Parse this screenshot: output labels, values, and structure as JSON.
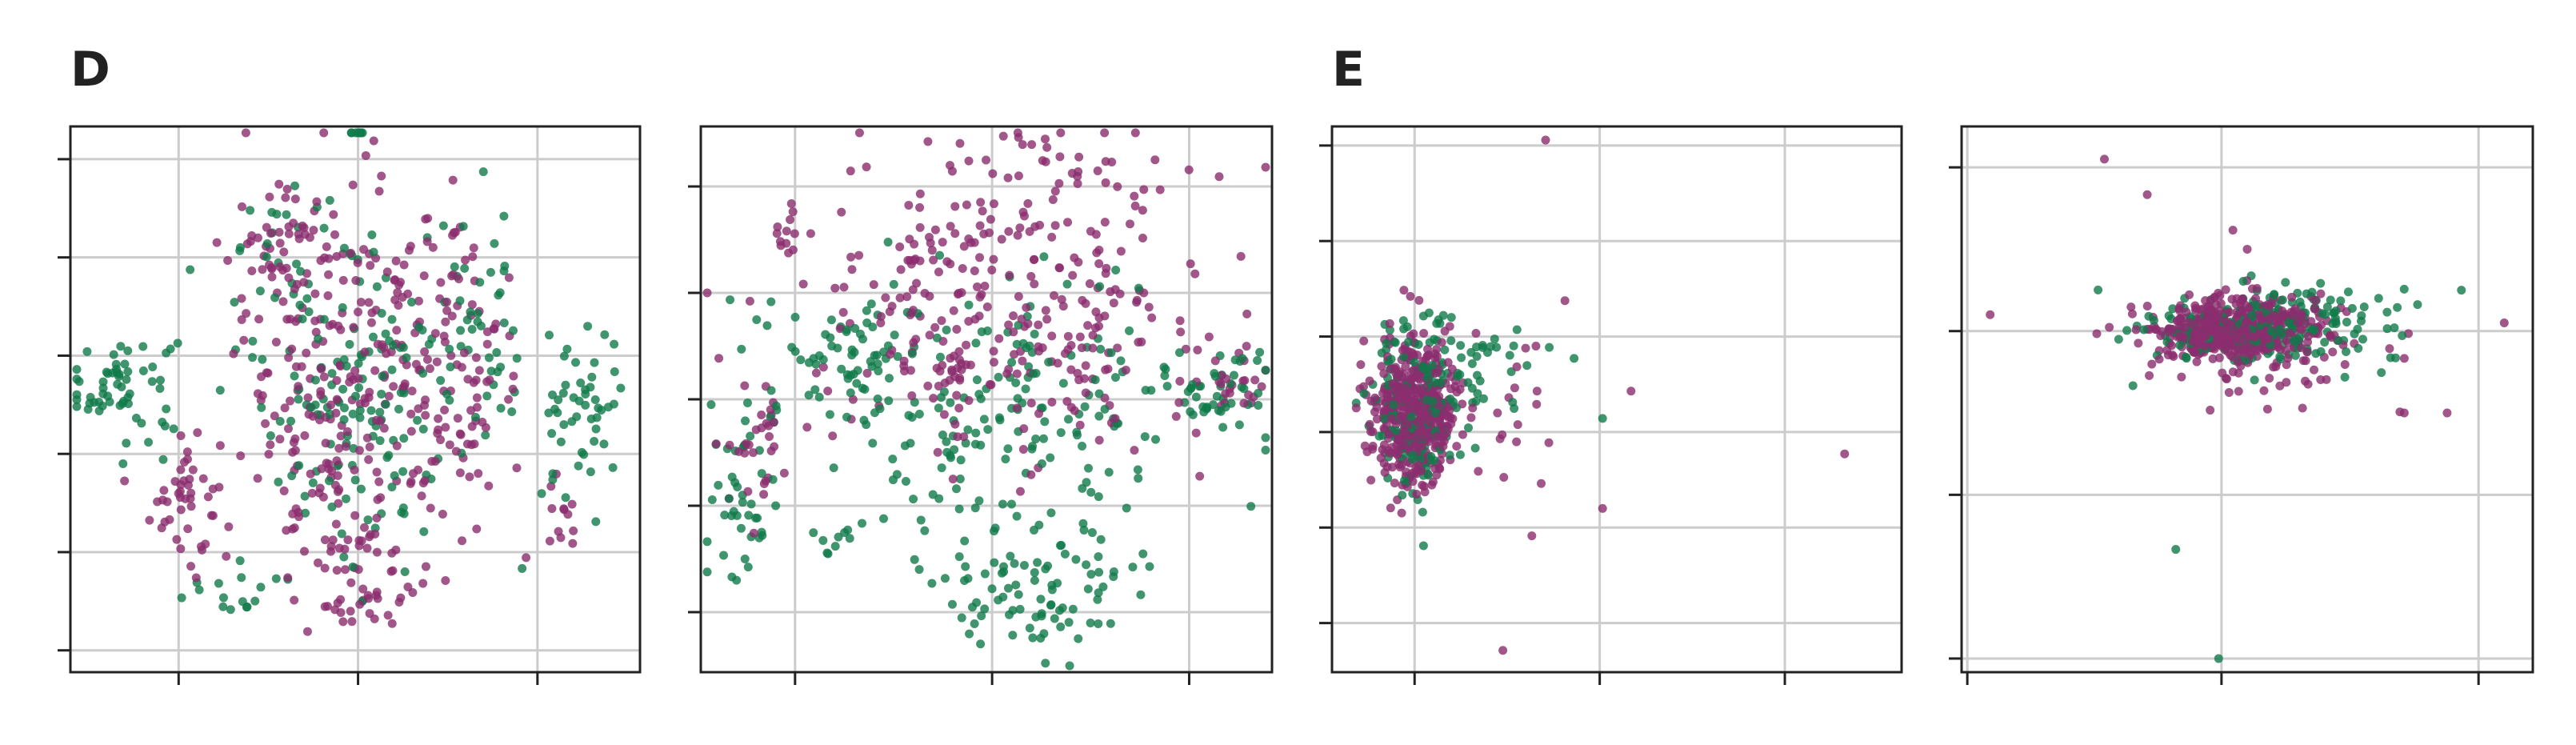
{
  "panel_labels": [
    "D",
    "E"
  ],
  "colors": {
    "groupA": "#8b2d6e",
    "groupB": "#107a4a",
    "grid": "#cccccc",
    "axis": "#222222"
  },
  "chart_data": [
    {
      "type": "scatter",
      "panel": "D",
      "xlim": [
        -1,
        1
      ],
      "ylim": [
        -1,
        1
      ],
      "grid": true,
      "xticks": [
        -0.62,
        0.01,
        0.64
      ],
      "yticks": [
        -0.92,
        -0.56,
        -0.2,
        0.16,
        0.52,
        0.88
      ],
      "clusters": [
        {
          "color": "groupB",
          "cx": -0.82,
          "cy": 0.05,
          "sx": 0.1,
          "sy": 0.1,
          "n": 60
        },
        {
          "color": "groupA",
          "cx": -0.6,
          "cy": -0.35,
          "sx": 0.06,
          "sy": 0.14,
          "n": 45
        },
        {
          "color": "groupB",
          "cx": -0.45,
          "cy": -0.7,
          "sx": 0.1,
          "sy": 0.05,
          "n": 15
        },
        {
          "color": "groupA",
          "cx": -0.28,
          "cy": 0.52,
          "sx": 0.1,
          "sy": 0.12,
          "n": 40
        },
        {
          "color": "groupB",
          "cx": -0.2,
          "cy": 0.55,
          "sx": 0.1,
          "sy": 0.1,
          "n": 25
        },
        {
          "color": "groupB",
          "cx": 0.01,
          "cy": 1.05,
          "sx": 0.02,
          "sy": 0.04,
          "n": 8
        },
        {
          "color": "groupA",
          "cx": 0.0,
          "cy": 0.05,
          "sx": 0.2,
          "sy": 0.35,
          "n": 260
        },
        {
          "color": "groupB",
          "cx": 0.0,
          "cy": 0.05,
          "sx": 0.2,
          "sy": 0.32,
          "n": 140
        },
        {
          "color": "groupA",
          "cx": 0.0,
          "cy": -0.65,
          "sx": 0.12,
          "sy": 0.12,
          "n": 50
        },
        {
          "color": "groupA",
          "cx": 0.38,
          "cy": 0.15,
          "sx": 0.1,
          "sy": 0.3,
          "n": 70
        },
        {
          "color": "groupB",
          "cx": 0.45,
          "cy": 0.2,
          "sx": 0.08,
          "sy": 0.2,
          "n": 40
        },
        {
          "color": "groupB",
          "cx": 0.8,
          "cy": -0.1,
          "sx": 0.07,
          "sy": 0.2,
          "n": 50
        },
        {
          "color": "groupA",
          "cx": 0.72,
          "cy": -0.4,
          "sx": 0.04,
          "sy": 0.08,
          "n": 12
        }
      ]
    },
    {
      "type": "scatter",
      "panel": "D",
      "xlim": [
        -1,
        1
      ],
      "ylim": [
        -1,
        1
      ],
      "grid": true,
      "xticks": [
        -0.67,
        0.02,
        0.71
      ],
      "yticks": [
        -0.78,
        -0.39,
        0.0,
        0.39,
        0.78
      ],
      "clusters": [
        {
          "color": "groupA",
          "cx": -0.7,
          "cy": 0.6,
          "sx": 0.03,
          "sy": 0.05,
          "n": 12
        },
        {
          "color": "groupB",
          "cx": -0.85,
          "cy": -0.35,
          "sx": 0.06,
          "sy": 0.15,
          "n": 40
        },
        {
          "color": "groupA",
          "cx": -0.8,
          "cy": -0.2,
          "sx": 0.06,
          "sy": 0.12,
          "n": 30
        },
        {
          "color": "groupB",
          "cx": -0.55,
          "cy": -0.5,
          "sx": 0.06,
          "sy": 0.05,
          "n": 10
        },
        {
          "color": "groupB",
          "cx": -0.5,
          "cy": 0.15,
          "sx": 0.15,
          "sy": 0.12,
          "n": 70
        },
        {
          "color": "groupA",
          "cx": 0.05,
          "cy": 0.35,
          "sx": 0.35,
          "sy": 0.3,
          "n": 320
        },
        {
          "color": "groupB",
          "cx": 0.1,
          "cy": -0.05,
          "sx": 0.3,
          "sy": 0.25,
          "n": 170
        },
        {
          "color": "groupB",
          "cx": 0.3,
          "cy": -0.7,
          "sx": 0.12,
          "sy": 0.12,
          "n": 55
        },
        {
          "color": "groupB",
          "cx": 0.0,
          "cy": -0.7,
          "sx": 0.12,
          "sy": 0.1,
          "n": 30
        },
        {
          "color": "groupA",
          "cx": 0.2,
          "cy": 0.88,
          "sx": 0.03,
          "sy": 0.04,
          "n": 8
        },
        {
          "color": "groupB",
          "cx": 0.82,
          "cy": 0.03,
          "sx": 0.08,
          "sy": 0.08,
          "n": 40
        },
        {
          "color": "groupA",
          "cx": 0.85,
          "cy": 0.08,
          "sx": 0.07,
          "sy": 0.08,
          "n": 25
        }
      ]
    },
    {
      "type": "scatter",
      "panel": "E",
      "xlim": [
        -1,
        1
      ],
      "ylim": [
        -1,
        1
      ],
      "grid": true,
      "xticks": [
        -0.71,
        -0.06,
        0.59
      ],
      "yticks": [
        -0.82,
        -0.47,
        -0.12,
        0.23,
        0.58,
        0.93
      ],
      "clusters": [
        {
          "color": "groupB",
          "cx": -0.7,
          "cy": -0.02,
          "sx": 0.08,
          "sy": 0.16,
          "n": 170
        },
        {
          "color": "groupA",
          "cx": -0.71,
          "cy": -0.05,
          "sx": 0.07,
          "sy": 0.13,
          "n": 460
        },
        {
          "color": "groupB",
          "cx": -0.5,
          "cy": 0.12,
          "sx": 0.12,
          "sy": 0.1,
          "n": 40
        },
        {
          "color": "groupA",
          "cx": -0.45,
          "cy": -0.05,
          "sx": 0.12,
          "sy": 0.15,
          "n": 25
        }
      ],
      "points": [
        {
          "color": "groupA",
          "x": -0.25,
          "y": 0.95
        },
        {
          "color": "groupA",
          "x": 0.8,
          "y": -0.2
        },
        {
          "color": "groupA",
          "x": -0.4,
          "y": -0.92
        },
        {
          "color": "groupA",
          "x": -0.05,
          "y": -0.4
        },
        {
          "color": "groupB",
          "x": -0.05,
          "y": -0.07
        },
        {
          "color": "groupA",
          "x": 0.05,
          "y": 0.03
        },
        {
          "color": "groupB",
          "x": -0.15,
          "y": 0.15
        },
        {
          "color": "groupA",
          "x": -0.28,
          "y": 0.03
        }
      ]
    },
    {
      "type": "scatter",
      "panel": "E",
      "xlim": [
        -1,
        1
      ],
      "ylim": [
        -1,
        1
      ],
      "grid": true,
      "xticks": [
        -0.98,
        -0.09,
        0.81
      ],
      "yticks": [
        -0.95,
        -0.35,
        0.25,
        0.85
      ],
      "clusters": [
        {
          "color": "groupB",
          "cx": 0.05,
          "cy": 0.25,
          "sx": 0.2,
          "sy": 0.07,
          "n": 180
        },
        {
          "color": "groupA",
          "cx": -0.05,
          "cy": 0.26,
          "sx": 0.15,
          "sy": 0.055,
          "n": 480
        },
        {
          "color": "groupA",
          "cx": 0.05,
          "cy": 0.15,
          "sx": 0.25,
          "sy": 0.1,
          "n": 60
        },
        {
          "color": "groupB",
          "cx": 0.25,
          "cy": 0.35,
          "sx": 0.15,
          "sy": 0.05,
          "n": 35
        }
      ],
      "points": [
        {
          "color": "groupA",
          "x": -0.5,
          "y": 0.88
        },
        {
          "color": "groupA",
          "x": -0.35,
          "y": 0.75
        },
        {
          "color": "groupA",
          "x": -0.9,
          "y": 0.31
        },
        {
          "color": "groupA",
          "x": 0.9,
          "y": 0.28
        },
        {
          "color": "groupB",
          "x": 0.75,
          "y": 0.4
        },
        {
          "color": "groupB",
          "x": -0.25,
          "y": -0.55
        },
        {
          "color": "groupB",
          "x": -0.1,
          "y": -0.95
        },
        {
          "color": "groupA",
          "x": 0.7,
          "y": -0.05
        },
        {
          "color": "groupA",
          "x": 0.55,
          "y": -0.05
        },
        {
          "color": "groupA",
          "x": 0.55,
          "y": 0.15
        },
        {
          "color": "groupB",
          "x": -0.4,
          "y": 0.05
        },
        {
          "color": "groupB",
          "x": -0.45,
          "y": 0.22
        },
        {
          "color": "groupA",
          "x": 0.0,
          "y": 0.55
        },
        {
          "color": "groupA",
          "x": -0.05,
          "y": 0.62
        }
      ]
    }
  ]
}
